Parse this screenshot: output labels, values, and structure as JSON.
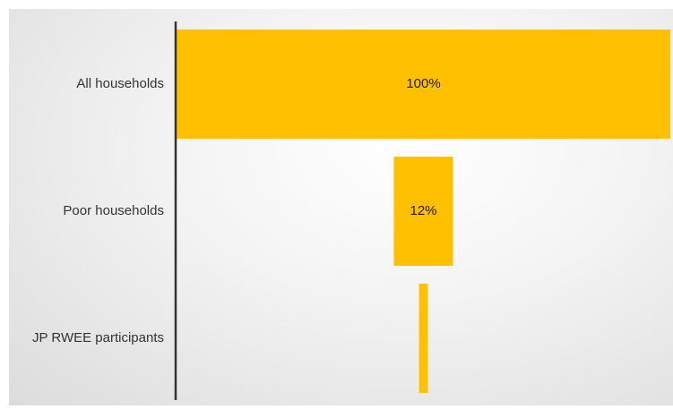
{
  "chart_data": {
    "type": "bar",
    "orientation": "horizontal",
    "alignment": "centered-funnel",
    "categories": [
      "All households",
      "Poor households",
      "JP RWEE participants"
    ],
    "values": [
      100,
      12,
      1.8
    ],
    "data_labels": [
      "100%",
      "12%",
      ""
    ],
    "title": "",
    "xlabel": "",
    "ylabel": "",
    "xlim": [
      0,
      100
    ],
    "grid": false,
    "legend": "none",
    "colors": {
      "bar": "#FFC000",
      "axis": "#333333",
      "text": "#333333"
    }
  }
}
